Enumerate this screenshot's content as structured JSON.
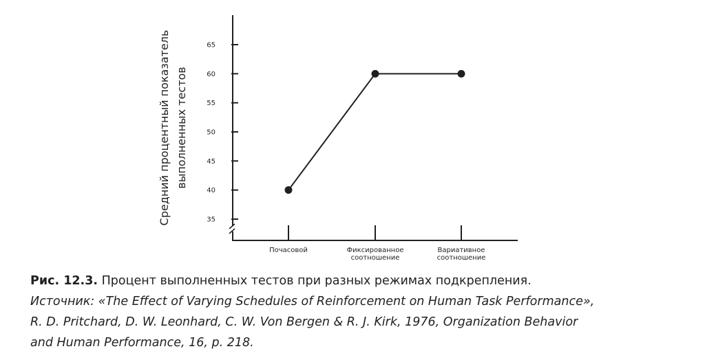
{
  "chart_data": {
    "type": "line",
    "categories": [
      "Почасовой",
      "Фиксированное соотношение",
      "Вариативное соотношение"
    ],
    "category_lines": [
      [
        "Почасовой"
      ],
      [
        "Фиксированное",
        "соотношение"
      ],
      [
        "Вариативное",
        "соотношение"
      ]
    ],
    "values": [
      40,
      60,
      60
    ],
    "ylabel_lines": [
      "Средний процентный показатель",
      "выполненных тестов"
    ],
    "yticks": [
      35,
      40,
      45,
      50,
      55,
      60,
      65
    ],
    "ylim": [
      35,
      65
    ],
    "axis_break": true,
    "grid": false,
    "colors": {
      "line": "#231f20"
    }
  },
  "caption": {
    "figure": "Рис. 12.3.",
    "title": "Процент выполненных тестов при разных режимах подкрепления.",
    "source_lines": [
      "Источник: «The Effect of Varying Schedules of Reinforcement on Human Task Performance»,",
      "R. D. Pritchard, D. W. Leonhard, C. W. Von Bergen & R. J. Kirk, 1976, Organization Behavior",
      "and Human Performance, 16, p. 218."
    ]
  }
}
